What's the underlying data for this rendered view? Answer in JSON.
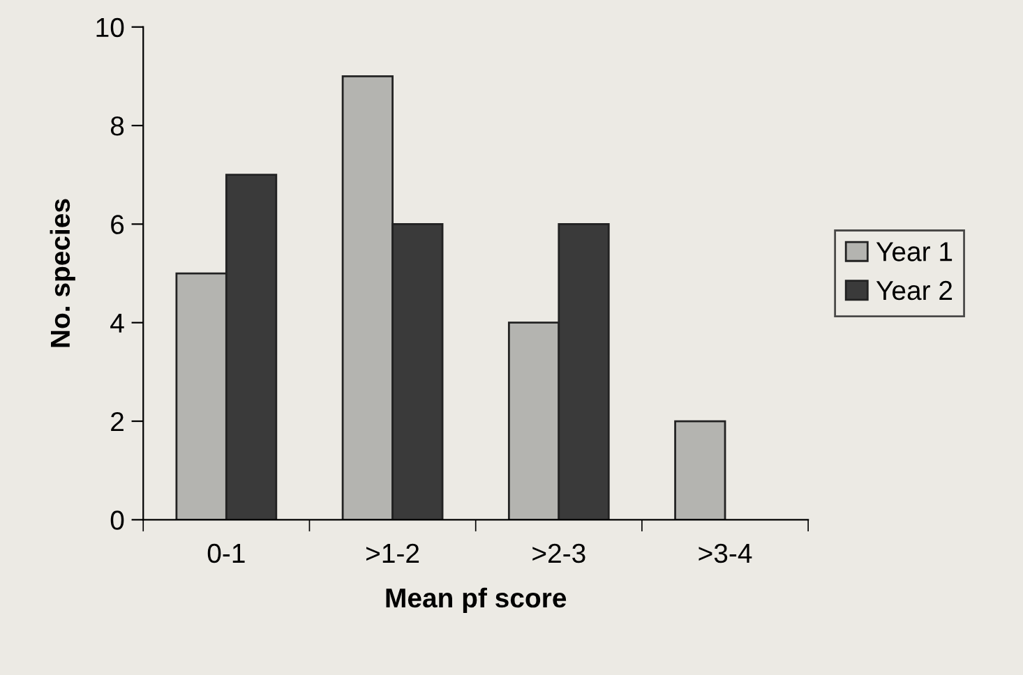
{
  "chart_data": {
    "type": "bar",
    "xlabel": "Mean pf score",
    "ylabel": "No. species",
    "categories": [
      "0-1",
      ">1-2",
      ">2-3",
      ">3-4"
    ],
    "series": [
      {
        "name": "Year 1",
        "color": "#b4b4b0",
        "values": [
          5,
          9,
          4,
          2
        ]
      },
      {
        "name": "Year 2",
        "color": "#3a3a3a",
        "values": [
          7,
          6,
          6,
          null
        ]
      }
    ],
    "ylim": [
      0,
      10
    ],
    "yticks": [
      0,
      2,
      4,
      6,
      8,
      10
    ],
    "grid": false,
    "legend": "right"
  }
}
